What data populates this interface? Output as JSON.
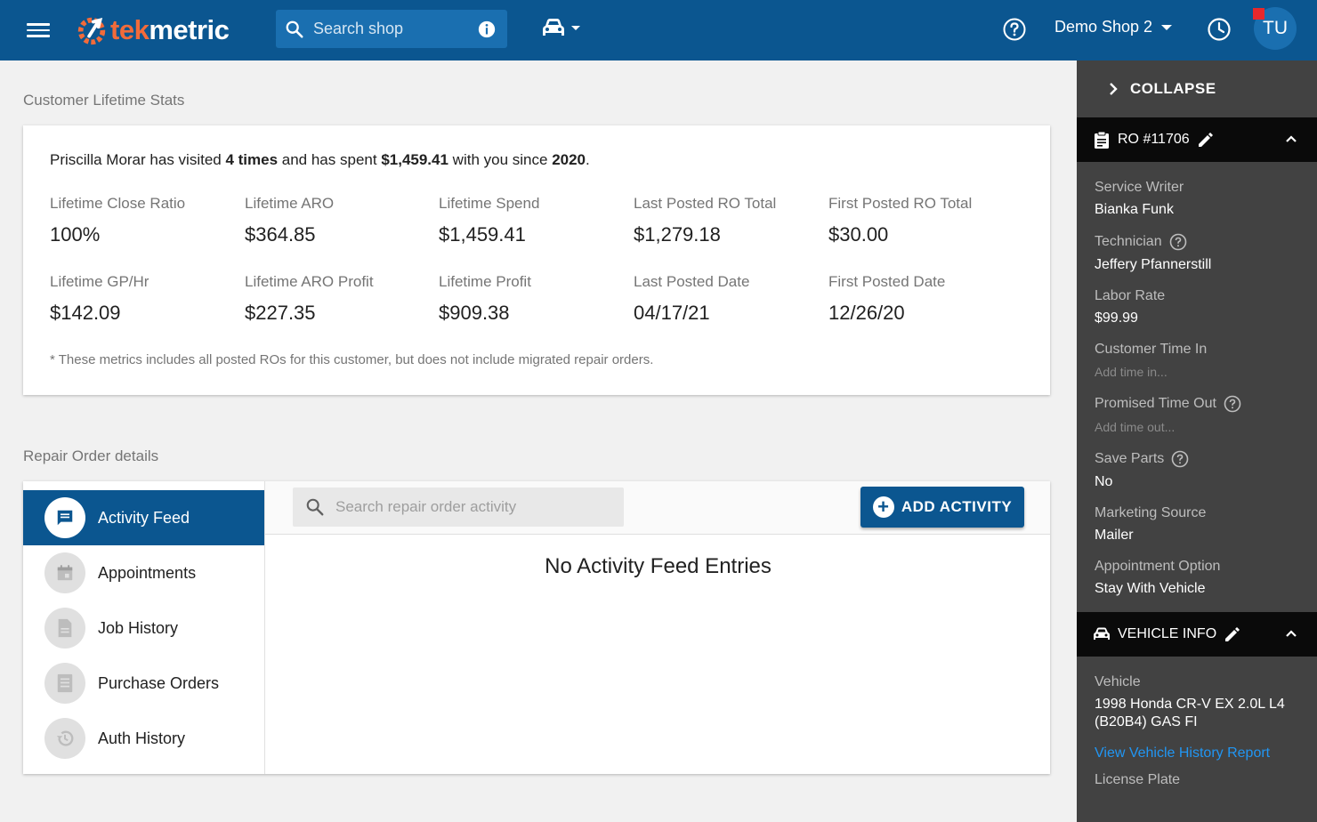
{
  "topbar": {
    "logo_tek": "tek",
    "logo_metric": "metric",
    "search_placeholder": "Search shop",
    "shop_name": "Demo Shop 2",
    "avatar_initials": "TU"
  },
  "stats": {
    "section_title": "Customer Lifetime Stats",
    "summary": {
      "customer": "Priscilla Morar",
      "text1": " has visited ",
      "visits": "4 times",
      "text2": " and has spent ",
      "spent": "$1,459.41",
      "text3": " with you since ",
      "since": "2020",
      "text4": "."
    },
    "items": [
      {
        "label": "Lifetime Close Ratio",
        "value": "100%"
      },
      {
        "label": "Lifetime ARO",
        "value": "$364.85"
      },
      {
        "label": "Lifetime Spend",
        "value": "$1,459.41"
      },
      {
        "label": "Last Posted RO Total",
        "value": "$1,279.18"
      },
      {
        "label": "First Posted RO Total",
        "value": "$30.00"
      },
      {
        "label": "Lifetime GP/Hr",
        "value": "$142.09"
      },
      {
        "label": "Lifetime ARO Profit",
        "value": "$227.35"
      },
      {
        "label": "Lifetime Profit",
        "value": "$909.38"
      },
      {
        "label": "Last Posted Date",
        "value": "04/17/21"
      },
      {
        "label": "First Posted Date",
        "value": "12/26/20"
      }
    ],
    "footnote": "* These metrics includes all posted ROs for this customer, but does not include migrated repair orders."
  },
  "repair_order": {
    "section_title": "Repair Order details",
    "nav": [
      {
        "label": "Activity Feed",
        "icon": "message-icon",
        "active": true
      },
      {
        "label": "Appointments",
        "icon": "calendar-icon",
        "active": false
      },
      {
        "label": "Job History",
        "icon": "document-icon",
        "active": false
      },
      {
        "label": "Purchase Orders",
        "icon": "list-icon",
        "active": false
      },
      {
        "label": "Auth History",
        "icon": "history-icon",
        "active": false
      }
    ],
    "search_placeholder": "Search repair order activity",
    "add_button": "ADD ACTIVITY",
    "empty_message": "No Activity Feed Entries"
  },
  "right_panel": {
    "collapse_label": "COLLAPSE",
    "ro_header": "RO #11706",
    "fields": [
      {
        "label": "Service Writer",
        "value": "Bianka Funk"
      },
      {
        "label": "Technician",
        "value": "Jeffery Pfannerstill",
        "help": true
      },
      {
        "label": "Labor Rate",
        "value": "$99.99"
      },
      {
        "label": "Customer Time In",
        "value": "Add time in...",
        "muted": true
      },
      {
        "label": "Promised Time Out",
        "value": "Add time out...",
        "muted": true,
        "help": true
      },
      {
        "label": "Save Parts",
        "value": "No",
        "help": true
      },
      {
        "label": "Marketing Source",
        "value": "Mailer"
      },
      {
        "label": "Appointment Option",
        "value": "Stay With Vehicle"
      }
    ],
    "vehicle_header": "VEHICLE INFO",
    "vehicle_label": "Vehicle",
    "vehicle_value": "1998 Honda CR-V EX 2.0L L4 (B20B4) GAS FI",
    "vehicle_link": "View Vehicle History Report",
    "next_label": "License Plate"
  },
  "colors": {
    "primary": "#0b5690",
    "accent": "#f26b3a",
    "panel_bg": "#424242",
    "link": "#2196f3"
  }
}
